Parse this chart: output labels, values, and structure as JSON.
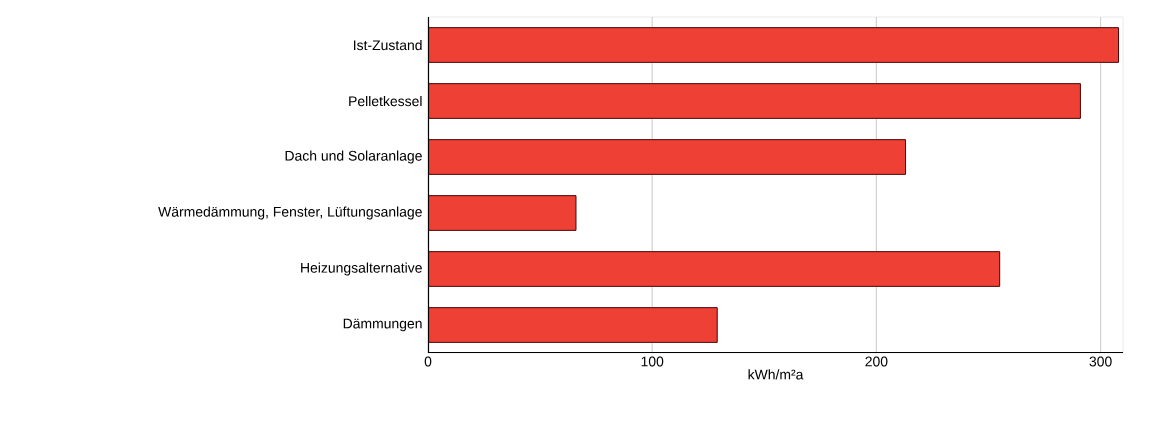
{
  "chart_data": {
    "type": "bar",
    "orientation": "horizontal",
    "xlabel": "kWh/m²a",
    "categories": [
      "Ist-Zustand",
      "Pelletkessel",
      "Dach und Solaranlage",
      "Wärmedämmung, Fenster, Lüftungsanlage",
      "Heizungsalternative",
      "Dämmungen"
    ],
    "values": [
      308,
      291,
      213,
      66,
      255,
      129
    ],
    "color": "#ee4035",
    "xlim": [
      0,
      310
    ],
    "xticks": [
      0,
      100,
      200,
      300
    ],
    "grid": "x"
  }
}
